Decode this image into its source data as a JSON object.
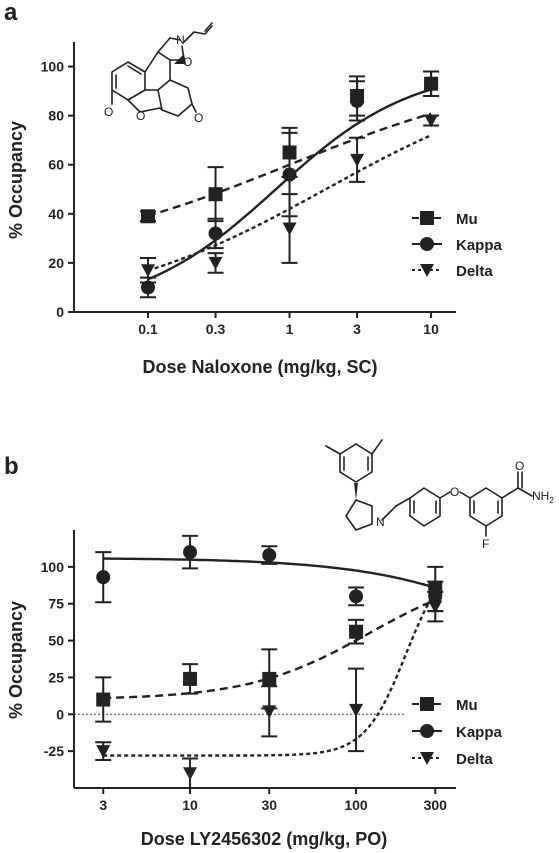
{
  "chart_data": [
    {
      "panel": "a",
      "type": "scatter",
      "xscale": "log",
      "xlabel": "Dose Naloxone (mg/kg, SC)",
      "ylabel": "% Occupancy",
      "xticks": [
        "0.1",
        "0.3",
        "1",
        "3",
        "10"
      ],
      "yticks": [
        "0",
        "20",
        "40",
        "60",
        "80",
        "100"
      ],
      "ylim": [
        0,
        110
      ],
      "xlim": [
        0.03,
        15
      ],
      "legend_position": "right",
      "series": [
        {
          "name": "Mu",
          "marker": "square",
          "line": "dashed",
          "x": [
            0.1,
            0.3,
            1,
            3,
            10
          ],
          "y": [
            39,
            48,
            65,
            88,
            93
          ],
          "err": [
            2,
            11,
            10,
            8,
            5
          ],
          "fit": {
            "bottom": 20,
            "top": 100,
            "ed50": 1,
            "hill": 0.5
          }
        },
        {
          "name": "Kappa",
          "marker": "circle",
          "line": "solid",
          "x": [
            0.1,
            0.3,
            1,
            3,
            10
          ],
          "y": [
            10,
            32,
            56,
            86,
            93
          ],
          "err": [
            4,
            6,
            17,
            8,
            5
          ],
          "fit": {
            "bottom": 0,
            "top": 100,
            "ed50": 0.8,
            "hill": 0.9
          }
        },
        {
          "name": "Delta",
          "marker": "triangle-down",
          "line": "dotted",
          "x": [
            0.1,
            0.3,
            1,
            3,
            10
          ],
          "y": [
            17,
            20,
            34,
            62,
            78
          ],
          "err": [
            5,
            4,
            14,
            9,
            2
          ],
          "fit": {
            "bottom": 0,
            "top": 100,
            "ed50": 1.8,
            "hill": 0.55
          }
        }
      ]
    },
    {
      "panel": "b",
      "type": "scatter",
      "xscale": "log",
      "xlabel": "Dose LY2456302 (mg/kg, PO)",
      "ylabel": "% Occupancy",
      "xticks": [
        "3",
        "10",
        "30",
        "100",
        "300"
      ],
      "yticks": [
        "-25",
        "0",
        "25",
        "50",
        "75",
        "100"
      ],
      "ylim": [
        -50,
        125
      ],
      "xlim": [
        2,
        400
      ],
      "zero_line": "dotted",
      "legend_position": "right",
      "series": [
        {
          "name": "Mu",
          "marker": "square",
          "line": "dashed",
          "x": [
            3,
            10,
            30,
            100,
            300
          ],
          "y": [
            10,
            24,
            24,
            56,
            85
          ],
          "err": [
            15,
            10,
            20,
            8,
            15
          ],
          "fit": {
            "bottom": 10,
            "top": 100,
            "ed50": 120,
            "hill": 1.2
          }
        },
        {
          "name": "Kappa",
          "marker": "circle",
          "line": "solid",
          "x": [
            3,
            10,
            30,
            100,
            300
          ],
          "y": [
            93,
            110,
            108,
            80,
            80
          ],
          "err": [
            17,
            11,
            6,
            6,
            10
          ],
          "fit": {
            "bottom": 106,
            "top": 0,
            "ed50": 1500,
            "hill": 0.9
          }
        },
        {
          "name": "Delta",
          "marker": "triangle-down",
          "line": "dotted",
          "x": [
            3,
            10,
            30,
            100,
            300
          ],
          "y": [
            -25,
            -40,
            2,
            3,
            73
          ],
          "err": [
            6,
            10,
            17,
            28,
            10
          ],
          "fit": {
            "bottom": -28,
            "top": 110,
            "ed50": 200,
            "hill": 3.5
          }
        }
      ]
    }
  ],
  "panels": [
    {
      "letter": "a",
      "molecule": "naloxone-structure",
      "atom_labels": {
        "n": "N",
        "o1": "O",
        "o2": "O",
        "o3": "O",
        "o4": "O"
      }
    },
    {
      "letter": "b",
      "molecule": "LY2456302-structure",
      "atom_labels": {
        "n": "N",
        "o": "O",
        "f": "F",
        "o_amide": "O",
        "nh2": "NH"
      }
    }
  ]
}
